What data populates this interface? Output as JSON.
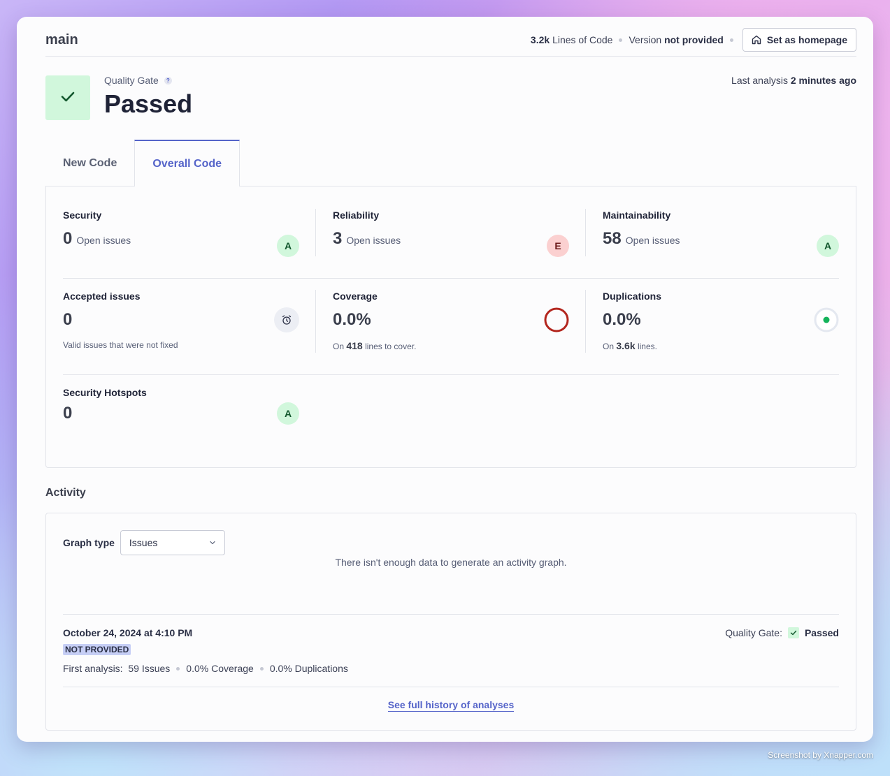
{
  "header": {
    "branch": "main",
    "loc_value": "3.2k",
    "loc_label": "Lines of Code",
    "version_label": "Version",
    "version_value": "not provided",
    "homepage_button": "Set as homepage"
  },
  "quality_gate": {
    "label": "Quality Gate",
    "help": "?",
    "status": "Passed",
    "last_analysis_label": "Last analysis",
    "last_analysis_value": "2 minutes ago"
  },
  "tabs": [
    {
      "label": "New Code",
      "active": false
    },
    {
      "label": "Overall Code",
      "active": true
    }
  ],
  "measures": {
    "security": {
      "title": "Security",
      "value": "0",
      "sub": "Open issues",
      "rating": "A"
    },
    "reliability": {
      "title": "Reliability",
      "value": "3",
      "sub": "Open issues",
      "rating": "E"
    },
    "maintainability": {
      "title": "Maintainability",
      "value": "58",
      "sub": "Open issues",
      "rating": "A"
    },
    "accepted": {
      "title": "Accepted issues",
      "value": "0",
      "note": "Valid issues that were not fixed"
    },
    "coverage": {
      "title": "Coverage",
      "value": "0.0%",
      "note_prefix": "On",
      "note_value": "418",
      "note_suffix": "lines to cover."
    },
    "duplications": {
      "title": "Duplications",
      "value": "0.0%",
      "note_prefix": "On",
      "note_value": "3.6k",
      "note_suffix": "lines."
    },
    "hotspots": {
      "title": "Security Hotspots",
      "value": "0",
      "rating": "A"
    }
  },
  "activity": {
    "title": "Activity",
    "graph_type_label": "Graph type",
    "graph_type_value": "Issues",
    "no_data": "There isn't enough data to generate an activity graph.",
    "analysis": {
      "date": "October 24, 2024 at 4:10 PM",
      "badge": "NOT PROVIDED",
      "summary_label": "First analysis:",
      "issues": "59 Issues",
      "coverage": "0.0% Coverage",
      "duplications": "0.0% Duplications",
      "qg_label": "Quality Gate:",
      "qg_status": "Passed"
    },
    "history_link": "See full history of analyses"
  },
  "colors": {
    "accent": "#5564c9",
    "rating_a": "#d1f7dc",
    "rating_e": "#fbd0d0",
    "coverage_ring": "#b3261e",
    "duplications_dot": "#14b35a"
  },
  "watermark": "Screenshot by Xnapper.com"
}
